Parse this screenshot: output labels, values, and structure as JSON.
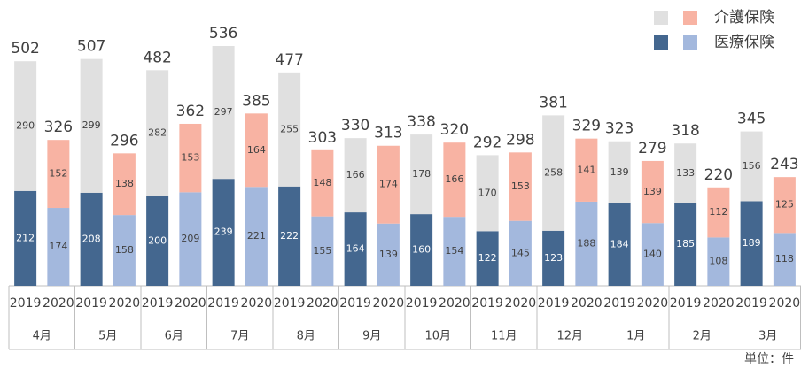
{
  "chart_data": {
    "type": "stacked-bar",
    "groups": [
      "4月",
      "5月",
      "6月",
      "7月",
      "8月",
      "9月",
      "10月",
      "11月",
      "12月",
      "1月",
      "2月",
      "3月"
    ],
    "categories": [
      "2019",
      "2020",
      "2019",
      "2020",
      "2019",
      "2020",
      "2019",
      "2020",
      "2019",
      "2020",
      "2019",
      "2020",
      "2019",
      "2020",
      "2019",
      "2020",
      "2019",
      "2020",
      "2019",
      "2020",
      "2019",
      "2020",
      "2019",
      "2020"
    ],
    "series": [
      {
        "name": "医療保険",
        "colors": [
          "#44678f",
          "#a3b8dd"
        ],
        "values": [
          212,
          174,
          208,
          158,
          200,
          209,
          239,
          221,
          222,
          155,
          164,
          139,
          160,
          154,
          122,
          145,
          123,
          188,
          184,
          140,
          185,
          108,
          189,
          118
        ]
      },
      {
        "name": "介護保険",
        "colors": [
          "#e0e0e0",
          "#f8b3a3"
        ],
        "values": [
          290,
          152,
          299,
          138,
          282,
          153,
          297,
          164,
          255,
          148,
          166,
          174,
          178,
          166,
          170,
          153,
          258,
          141,
          139,
          139,
          133,
          112,
          156,
          125
        ]
      }
    ],
    "totals": [
      502,
      326,
      507,
      296,
      482,
      362,
      536,
      385,
      477,
      303,
      330,
      313,
      338,
      320,
      292,
      298,
      381,
      329,
      323,
      279,
      318,
      220,
      345,
      243
    ],
    "unit_label": "単位：件"
  }
}
